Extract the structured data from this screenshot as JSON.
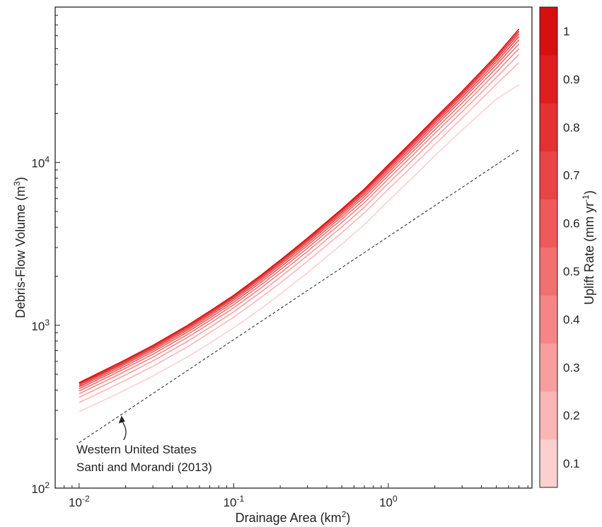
{
  "chart_data": {
    "type": "line",
    "xscale": "log",
    "yscale": "log",
    "xlim": [
      0.007,
      8.5
    ],
    "ylim": [
      100,
      90000
    ],
    "x_ticks": [
      {
        "value": 0.01,
        "base": "10",
        "exp": "-2"
      },
      {
        "value": 0.1,
        "base": "10",
        "exp": "-1"
      },
      {
        "value": 1,
        "base": "10",
        "exp": "0"
      }
    ],
    "y_ticks": [
      {
        "value": 100,
        "base": "10",
        "exp": "2"
      },
      {
        "value": 1000,
        "base": "10",
        "exp": "3"
      },
      {
        "value": 10000,
        "base": "10",
        "exp": "4"
      }
    ],
    "xlabel": {
      "text": "Drainage Area (km",
      "sup": "2",
      "tail": ")"
    },
    "ylabel": {
      "text": "Debris-Flow Volume (m",
      "sup": "3",
      "tail": ")"
    },
    "grid": false,
    "x": [
      0.01,
      0.015,
      0.02,
      0.03,
      0.05,
      0.07,
      0.1,
      0.15,
      0.2,
      0.3,
      0.5,
      0.7,
      1.0,
      1.5,
      2.0,
      3.0,
      5.0,
      7.0
    ],
    "series": [
      {
        "uplift": 0.1,
        "color": "#fdd0d0",
        "values": [
          295,
          352,
          402,
          488,
          638,
          776,
          965,
          1265,
          1555,
          2100,
          3150,
          4150,
          5800,
          8400,
          11000,
          15800,
          24500,
          30000
        ]
      },
      {
        "uplift": 0.2,
        "color": "#fbb6b6",
        "values": [
          335,
          403,
          460,
          560,
          735,
          900,
          1120,
          1480,
          1820,
          2470,
          3700,
          4900,
          6850,
          9900,
          12900,
          18700,
          30200,
          41000
        ]
      },
      {
        "uplift": 0.3,
        "color": "#f99e9e",
        "values": [
          361,
          434,
          496,
          604,
          794,
          970,
          1210,
          1600,
          1975,
          2680,
          4020,
          5320,
          7450,
          10800,
          14100,
          20500,
          33300,
          46000
        ]
      },
      {
        "uplift": 0.4,
        "color": "#f68686",
        "values": [
          380,
          457,
          523,
          637,
          839,
          1026,
          1280,
          1693,
          2090,
          2840,
          4270,
          5650,
          7920,
          11500,
          15100,
          21900,
          35800,
          50000
        ]
      },
      {
        "uplift": 0.5,
        "color": "#f27070",
        "values": [
          395,
          476,
          545,
          664,
          875,
          1071,
          1337,
          1770,
          2187,
          2976,
          4478,
          5930,
          8320,
          12100,
          15900,
          23100,
          37900,
          53500
        ]
      },
      {
        "uplift": 0.6,
        "color": "#ee5a5a",
        "values": [
          408,
          492,
          563,
          687,
          906,
          1109,
          1385,
          1836,
          2270,
          3090,
          4655,
          6170,
          8660,
          12600,
          16600,
          24200,
          39800,
          56500
        ]
      },
      {
        "uplift": 0.7,
        "color": "#e94545",
        "values": [
          419,
          505,
          579,
          706,
          932,
          1142,
          1427,
          1893,
          2342,
          3190,
          4808,
          6376,
          8955,
          13050,
          17200,
          25100,
          41400,
          59300
        ]
      },
      {
        "uplift": 0.8,
        "color": "#e43131",
        "values": [
          428,
          517,
          592,
          723,
          955,
          1171,
          1464,
          1943,
          2405,
          3278,
          4943,
          6558,
          9215,
          13450,
          17750,
          25950,
          42900,
          61700
        ]
      },
      {
        "uplift": 0.9,
        "color": "#de1f1f",
        "values": [
          437,
          527,
          604,
          738,
          976,
          1197,
          1497,
          1988,
          2462,
          3357,
          5065,
          6722,
          9450,
          13800,
          18230,
          26650,
          44200,
          63900
        ]
      },
      {
        "uplift": 1.0,
        "color": "#d70f0f",
        "values": [
          444,
          537,
          615,
          752,
          995,
          1221,
          1527,
          2029,
          2513,
          3428,
          5175,
          6870,
          9665,
          14130,
          18670,
          27330,
          45400,
          66000
        ]
      }
    ],
    "reference_line": {
      "style": "dashed",
      "color": "#333333",
      "x": [
        0.01,
        7.0
      ],
      "y": [
        190,
        12000
      ]
    },
    "annotation": {
      "lines": [
        "Western United States",
        "Santi and Morandi (2013)"
      ],
      "arrow_to": {
        "x": 0.019,
        "y": 290
      }
    },
    "colorbar": {
      "title_text": "Uplift Rate (mm yr",
      "title_sup": "-1",
      "title_tail": ")",
      "levels": [
        0.1,
        0.2,
        0.3,
        0.4,
        0.5,
        0.6,
        0.7,
        0.8,
        0.9,
        1.0
      ],
      "labels": [
        "0.1",
        "0.2",
        "0.3",
        "0.4",
        "0.5",
        "0.6",
        "0.7",
        "0.8",
        "0.9",
        "1"
      ],
      "colors": [
        "#fdd0d0",
        "#fbb6b6",
        "#f99e9e",
        "#f68686",
        "#f27070",
        "#ee5a5a",
        "#e94545",
        "#e43131",
        "#de1f1f",
        "#d70f0f"
      ]
    }
  }
}
